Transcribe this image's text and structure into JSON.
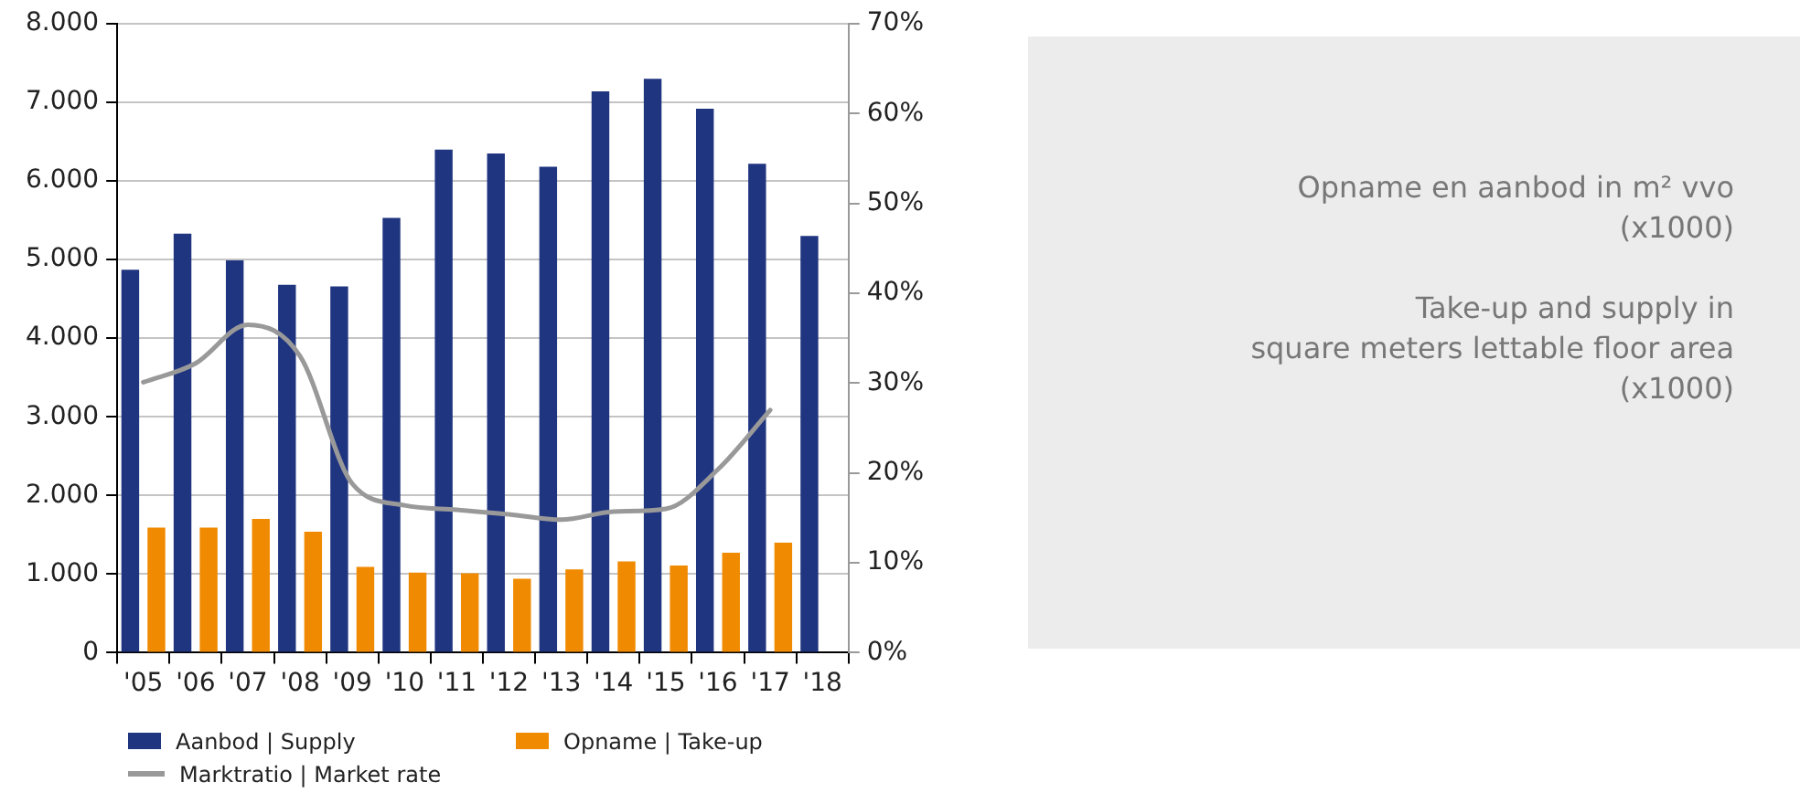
{
  "chart_data": {
    "type": "bar",
    "categories": [
      "'05",
      "'06",
      "'07",
      "'08",
      "'09",
      "'10",
      "'11",
      "'12",
      "'13",
      "'14",
      "'15",
      "'16",
      "'17",
      "'18"
    ],
    "series": [
      {
        "name": "Aanbod | Supply",
        "color": "#203580",
        "values": [
          4870,
          5330,
          4990,
          4680,
          4660,
          5530,
          6400,
          6350,
          6180,
          7140,
          7300,
          6920,
          6220,
          5300
        ]
      },
      {
        "name": "Opname | Take-up",
        "color": "#f08a00",
        "values": [
          1590,
          1590,
          1700,
          1540,
          1090,
          1020,
          1010,
          940,
          1060,
          1160,
          1110,
          1270,
          1400,
          null
        ]
      },
      {
        "name": "Marktratio | Market rate",
        "type": "line",
        "axis": "y2",
        "color": "#999999",
        "values": [
          30.1,
          32.2,
          36.5,
          33.0,
          18.8,
          16.4,
          15.9,
          15.4,
          14.8,
          15.7,
          16.0,
          20.4,
          27.0,
          null
        ]
      }
    ],
    "ylim": [
      0,
      8000
    ],
    "yticks": [
      0,
      {
        "value": 1000,
        "label": "1.000"
      },
      {
        "value": 2000,
        "label": "2.000"
      },
      {
        "value": 3000,
        "label": "3.000"
      },
      {
        "value": 4000,
        "label": "4.000"
      },
      {
        "value": 5000,
        "label": "5.000"
      },
      {
        "value": 6000,
        "label": "6.000"
      },
      {
        "value": 7000,
        "label": "7.000"
      },
      {
        "value": 8000,
        "label": "8.000"
      }
    ],
    "y2lim": [
      0,
      70
    ],
    "y2ticks": [
      {
        "value": 0,
        "label": "0%"
      },
      {
        "value": 10,
        "label": "10%"
      },
      {
        "value": 20,
        "label": "20%"
      },
      {
        "value": 30,
        "label": "30%"
      },
      {
        "value": 40,
        "label": "40%"
      },
      {
        "value": 50,
        "label": "50%"
      },
      {
        "value": 60,
        "label": "60%"
      },
      {
        "value": 70,
        "label": "70%"
      }
    ],
    "grid": "y",
    "legend": "bottom",
    "marker": "none",
    "line_style": "solid",
    "annotations": [
      "Opname en aanbod in m² vvo\n(x1000)",
      "Take-up and supply in\nsquare meters lettable floor area\n(x1000)"
    ]
  }
}
